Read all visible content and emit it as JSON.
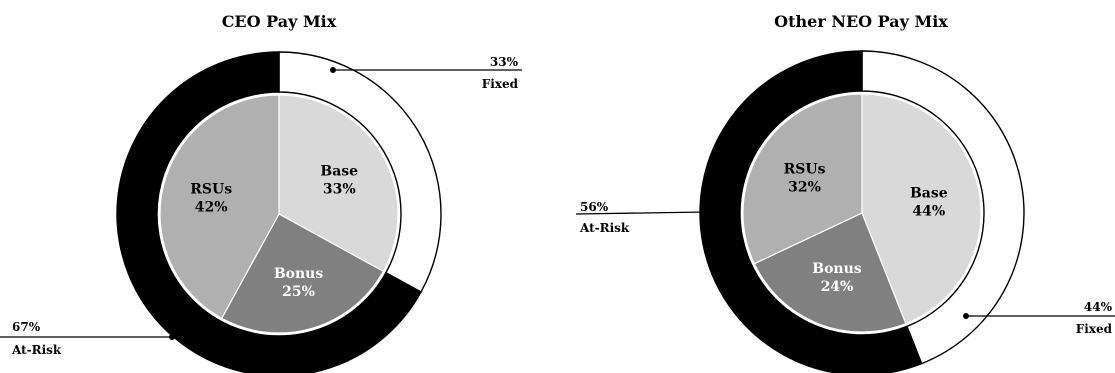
{
  "chart_data": [
    {
      "type": "pie",
      "title": "CEO Pay Mix",
      "inner": {
        "slices": [
          {
            "name": "Base",
            "value": 33,
            "label": "33%",
            "color": "#d9d9d9",
            "text_color": "#000000"
          },
          {
            "name": "Bonus",
            "value": 25,
            "label": "25%",
            "color": "#808080",
            "text_color": "#ffffff"
          },
          {
            "name": "RSUs",
            "value": 42,
            "label": "42%",
            "color": "#b0b0b0",
            "text_color": "#000000"
          }
        ]
      },
      "outer": {
        "slices": [
          {
            "name": "Fixed",
            "value": 33,
            "label": "33%",
            "color": "#ffffff"
          },
          {
            "name": "At-Risk",
            "value": 67,
            "label": "67%",
            "color": "#000000"
          }
        ]
      }
    },
    {
      "type": "pie",
      "title": "Other NEO Pay Mix",
      "inner": {
        "slices": [
          {
            "name": "Base",
            "value": 44,
            "label": "44%",
            "color": "#d9d9d9",
            "text_color": "#000000"
          },
          {
            "name": "Bonus",
            "value": 24,
            "label": "24%",
            "color": "#808080",
            "text_color": "#ffffff"
          },
          {
            "name": "RSUs",
            "value": 32,
            "label": "32%",
            "color": "#b0b0b0",
            "text_color": "#000000"
          }
        ]
      },
      "outer": {
        "slices": [
          {
            "name": "Fixed",
            "value": 44,
            "label": "44%",
            "color": "#ffffff"
          },
          {
            "name": "At-Risk",
            "value": 56,
            "label": "56%",
            "color": "#000000"
          }
        ]
      }
    }
  ]
}
